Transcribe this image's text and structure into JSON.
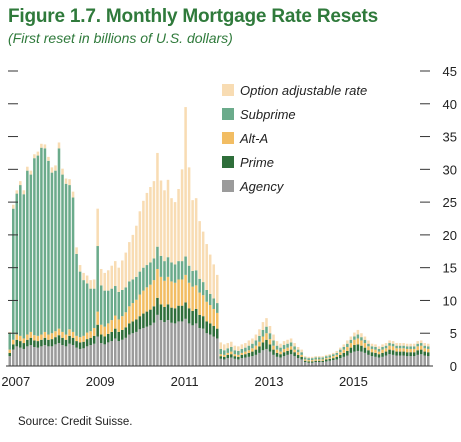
{
  "title": "Figure 1.7. Monthly Mortgage Rate Resets",
  "subtitle": "(First reset in billions of U.S. dollars)",
  "source": "Source: Credit Suisse.",
  "chart_data": {
    "type": "bar",
    "stacked": true,
    "ylabel": "",
    "xlabel": "",
    "ylim": [
      0,
      45
    ],
    "y_ticks": [
      0,
      5,
      10,
      15,
      20,
      25,
      30,
      35,
      40,
      45
    ],
    "x_tick_labels": [
      "2007",
      "2009",
      "2011",
      "2013",
      "2015"
    ],
    "x_start": "2007-01",
    "grid": false,
    "legend_position": "top-right",
    "series_colors": {
      "Agency": "#9b9b9b",
      "Prime": "#2e6e3a",
      "Alt-A": "#f2bd63",
      "Subprime": "#6bab8b",
      "Option adjustable rate": "#f8dcb3"
    },
    "legend": [
      "Option adjustable rate",
      "Subprime",
      "Alt-A",
      "Prime",
      "Agency"
    ],
    "categories": [
      "2007-01",
      "2007-02",
      "2007-03",
      "2007-04",
      "2007-05",
      "2007-06",
      "2007-07",
      "2007-08",
      "2007-09",
      "2007-10",
      "2007-11",
      "2007-12",
      "2008-01",
      "2008-02",
      "2008-03",
      "2008-04",
      "2008-05",
      "2008-06",
      "2008-07",
      "2008-08",
      "2008-09",
      "2008-10",
      "2008-11",
      "2008-12",
      "2009-01",
      "2009-02",
      "2009-03",
      "2009-04",
      "2009-05",
      "2009-06",
      "2009-07",
      "2009-08",
      "2009-09",
      "2009-10",
      "2009-11",
      "2009-12",
      "2010-01",
      "2010-02",
      "2010-03",
      "2010-04",
      "2010-05",
      "2010-06",
      "2010-07",
      "2010-08",
      "2010-09",
      "2010-10",
      "2010-11",
      "2010-12",
      "2011-01",
      "2011-02",
      "2011-03",
      "2011-04",
      "2011-05",
      "2011-06",
      "2011-07",
      "2011-08",
      "2011-09",
      "2011-10",
      "2011-11",
      "2011-12",
      "2012-01",
      "2012-02",
      "2012-03",
      "2012-04",
      "2012-05",
      "2012-06",
      "2012-07",
      "2012-08",
      "2012-09",
      "2012-10",
      "2012-11",
      "2012-12",
      "2013-01",
      "2013-02",
      "2013-03",
      "2013-04",
      "2013-05",
      "2013-06",
      "2013-07",
      "2013-08",
      "2013-09",
      "2013-10",
      "2013-11",
      "2013-12",
      "2014-01",
      "2014-02",
      "2014-03",
      "2014-04",
      "2014-05",
      "2014-06",
      "2014-07",
      "2014-08",
      "2014-09",
      "2014-10",
      "2014-11",
      "2014-12",
      "2015-01",
      "2015-02",
      "2015-03",
      "2015-04",
      "2015-05",
      "2015-06",
      "2015-07",
      "2015-08",
      "2015-09",
      "2015-10",
      "2015-11",
      "2015-12",
      "2016-01",
      "2016-02",
      "2016-03",
      "2016-04",
      "2016-05",
      "2016-06",
      "2016-07",
      "2016-08",
      "2016-09",
      "2016-10",
      "2016-11",
      "2016-12"
    ],
    "series": [
      {
        "name": "Agency",
        "values": [
          1.5,
          2.5,
          3.0,
          2.8,
          2.6,
          3.0,
          3.2,
          2.9,
          2.8,
          3.0,
          3.2,
          3.0,
          3.0,
          3.3,
          3.5,
          3.2,
          3.0,
          3.4,
          3.2,
          2.8,
          2.6,
          2.7,
          3.0,
          3.2,
          3.4,
          4.5,
          3.5,
          3.3,
          3.6,
          3.8,
          4.2,
          3.8,
          4.0,
          4.3,
          4.8,
          5.0,
          5.2,
          5.6,
          5.8,
          6.0,
          6.2,
          6.6,
          7.8,
          7.0,
          6.7,
          7.0,
          6.6,
          6.5,
          6.8,
          6.8,
          7.2,
          6.5,
          6.2,
          6.5,
          5.8,
          5.7,
          5.0,
          4.8,
          4.5,
          4.2,
          1.1,
          1.0,
          1.2,
          1.3,
          1.1,
          1.0,
          1.2,
          1.3,
          1.4,
          1.5,
          1.7,
          2.0,
          2.4,
          2.6,
          2.2,
          1.7,
          1.4,
          1.3,
          1.5,
          1.7,
          1.8,
          1.5,
          1.2,
          1.0,
          0.6,
          0.5,
          0.5,
          0.6,
          0.6,
          0.6,
          0.7,
          0.8,
          0.9,
          1.0,
          1.2,
          1.4,
          1.6,
          2.0,
          2.2,
          2.3,
          2.2,
          2.0,
          1.7,
          1.5,
          1.4,
          1.3,
          1.4,
          1.6,
          1.8,
          1.7,
          1.6,
          1.6,
          1.6,
          1.5,
          1.5,
          1.5,
          1.7,
          1.8,
          1.6,
          1.5
        ]
      },
      {
        "name": "Prime",
        "values": [
          0.5,
          0.8,
          1.0,
          1.0,
          0.9,
          1.0,
          1.1,
          1.0,
          1.0,
          1.0,
          1.1,
          1.0,
          1.1,
          1.1,
          1.2,
          1.1,
          1.0,
          1.2,
          1.1,
          1.0,
          1.0,
          1.0,
          1.1,
          1.1,
          1.2,
          1.8,
          1.3,
          1.2,
          1.3,
          1.4,
          1.5,
          1.4,
          1.5,
          1.6,
          1.7,
          1.8,
          1.9,
          2.0,
          2.2,
          2.3,
          2.4,
          2.5,
          2.6,
          2.4,
          2.3,
          2.4,
          2.3,
          2.3,
          2.4,
          2.4,
          2.5,
          2.3,
          2.2,
          2.2,
          2.0,
          1.9,
          1.8,
          1.7,
          1.6,
          1.5,
          0.4,
          0.4,
          0.5,
          0.5,
          0.4,
          0.4,
          0.5,
          0.5,
          0.6,
          0.7,
          0.8,
          1.0,
          1.2,
          1.4,
          1.1,
          0.8,
          0.6,
          0.5,
          0.6,
          0.6,
          0.7,
          0.6,
          0.5,
          0.4,
          0.2,
          0.2,
          0.2,
          0.2,
          0.2,
          0.2,
          0.3,
          0.3,
          0.3,
          0.4,
          0.5,
          0.6,
          0.7,
          0.8,
          1.0,
          1.0,
          0.9,
          0.8,
          0.7,
          0.6,
          0.6,
          0.5,
          0.6,
          0.6,
          0.7,
          0.7,
          0.6,
          0.6,
          0.6,
          0.6,
          0.6,
          0.6,
          0.7,
          0.7,
          0.6,
          0.6
        ]
      },
      {
        "name": "Alt-A",
        "values": [
          0.5,
          0.7,
          0.8,
          0.8,
          0.7,
          0.8,
          0.9,
          0.8,
          0.8,
          0.8,
          0.9,
          0.8,
          0.9,
          0.9,
          1.0,
          0.9,
          0.8,
          1.0,
          0.9,
          0.8,
          0.8,
          0.9,
          1.0,
          1.0,
          1.2,
          2.0,
          1.5,
          1.5,
          1.6,
          1.8,
          2.0,
          1.9,
          2.1,
          2.3,
          2.6,
          2.8,
          3.0,
          3.3,
          3.5,
          3.7,
          3.8,
          4.0,
          4.4,
          4.2,
          4.0,
          4.2,
          4.0,
          3.9,
          4.0,
          4.0,
          4.2,
          3.9,
          3.7,
          3.6,
          3.4,
          3.2,
          3.0,
          2.8,
          2.6,
          2.4,
          0.3,
          0.3,
          0.3,
          0.4,
          0.3,
          0.3,
          0.3,
          0.4,
          0.4,
          0.5,
          0.6,
          0.7,
          0.9,
          1.0,
          0.8,
          0.6,
          0.5,
          0.4,
          0.5,
          0.5,
          0.5,
          0.4,
          0.4,
          0.3,
          0.2,
          0.2,
          0.2,
          0.2,
          0.2,
          0.2,
          0.2,
          0.2,
          0.3,
          0.3,
          0.4,
          0.5,
          0.6,
          0.7,
          0.8,
          0.9,
          0.8,
          0.7,
          0.6,
          0.5,
          0.5,
          0.4,
          0.5,
          0.5,
          0.6,
          0.6,
          0.5,
          0.5,
          0.5,
          0.5,
          0.5,
          0.5,
          0.6,
          0.6,
          0.5,
          0.5
        ]
      },
      {
        "name": "Subprime",
        "values": [
          2.5,
          20.0,
          21.5,
          23.0,
          22.0,
          25.0,
          24.0,
          27.0,
          27.5,
          28.5,
          28.0,
          26.5,
          24.5,
          24.5,
          27.5,
          24.0,
          23.0,
          22.0,
          20.5,
          12.5,
          10.0,
          8.5,
          7.5,
          6.5,
          6.0,
          10.0,
          6.0,
          5.5,
          5.0,
          4.8,
          4.5,
          4.2,
          4.0,
          3.8,
          3.8,
          3.6,
          3.5,
          3.5,
          3.5,
          3.4,
          3.4,
          3.3,
          3.4,
          3.2,
          3.0,
          3.0,
          2.9,
          2.8,
          2.8,
          2.8,
          2.8,
          2.6,
          2.4,
          2.3,
          2.1,
          2.0,
          1.8,
          1.7,
          1.6,
          1.5,
          0.8,
          0.7,
          0.7,
          0.7,
          0.6,
          0.6,
          0.6,
          0.6,
          0.7,
          0.7,
          0.8,
          0.9,
          1.0,
          1.0,
          0.9,
          0.8,
          0.6,
          0.6,
          0.6,
          0.6,
          0.6,
          0.5,
          0.4,
          0.4,
          0.3,
          0.3,
          0.3,
          0.3,
          0.3,
          0.3,
          0.3,
          0.3,
          0.3,
          0.3,
          0.4,
          0.4,
          0.5,
          0.5,
          0.5,
          0.6,
          0.5,
          0.5,
          0.4,
          0.4,
          0.4,
          0.4,
          0.4,
          0.4,
          0.4,
          0.4,
          0.4,
          0.4,
          0.4,
          0.4,
          0.4,
          0.4,
          0.4,
          0.4,
          0.4,
          0.4
        ]
      },
      {
        "name": "Option adjustable rate",
        "values": [
          0.2,
          0.6,
          0.5,
          0.6,
          0.6,
          0.6,
          0.6,
          0.6,
          0.6,
          0.6,
          0.6,
          0.6,
          0.8,
          0.8,
          0.9,
          0.9,
          0.8,
          0.9,
          0.9,
          1.0,
          1.0,
          1.1,
          1.2,
          1.3,
          1.4,
          5.7,
          2.5,
          2.7,
          3.1,
          3.5,
          3.8,
          3.7,
          4.5,
          5.3,
          6.0,
          6.8,
          7.8,
          9.2,
          10.2,
          11.0,
          11.5,
          11.8,
          14.3,
          11.5,
          10.8,
          11.8,
          9.8,
          9.5,
          11.0,
          14.0,
          22.8,
          15.0,
          10.8,
          11.0,
          8.8,
          7.7,
          7.0,
          6.0,
          5.2,
          4.3,
          1.0,
          0.9,
          0.8,
          0.8,
          0.7,
          0.7,
          0.7,
          0.7,
          0.8,
          0.8,
          0.9,
          1.0,
          1.2,
          1.3,
          1.1,
          0.9,
          0.7,
          0.6,
          0.6,
          0.6,
          0.6,
          0.5,
          0.4,
          0.4,
          0.2,
          0.2,
          0.2,
          0.2,
          0.2,
          0.2,
          0.2,
          0.2,
          0.2,
          0.3,
          0.3,
          0.4,
          0.5,
          0.5,
          0.6,
          0.7,
          0.6,
          0.5,
          0.5,
          0.4,
          0.4,
          0.4,
          0.4,
          0.4,
          0.4,
          0.4,
          0.4,
          0.4,
          0.4,
          0.4,
          0.4,
          0.4,
          0.4,
          0.4,
          0.4,
          0.4
        ]
      }
    ]
  }
}
